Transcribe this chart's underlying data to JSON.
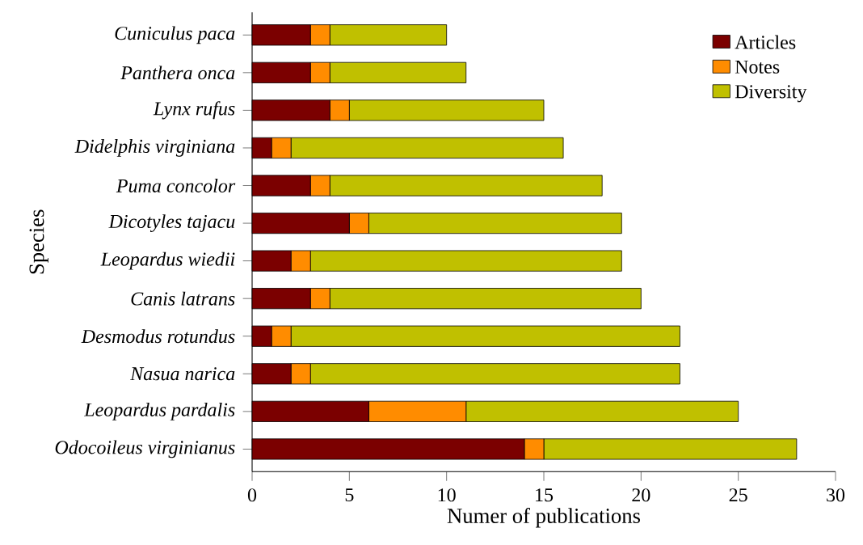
{
  "chart_data": {
    "type": "bar",
    "orientation": "horizontal",
    "stacked": true,
    "xlabel": "Numer of publications",
    "ylabel": "Species",
    "categories": [
      "Cuniculus paca",
      "Panthera onca",
      "Lynx rufus",
      "Didelphis virginiana",
      "Puma concolor",
      "Dicotyles tajacu",
      "Leopardus wiedii",
      "Canis latrans",
      "Desmodus rotundus",
      "Nasua narica",
      "Leopardus pardalis",
      "Odocoileus virginianus"
    ],
    "series": [
      {
        "name": "Articles",
        "color": "#7b0000",
        "values": [
          3,
          3,
          4,
          1,
          3,
          5,
          2,
          3,
          1,
          2,
          6,
          14
        ]
      },
      {
        "name": "Notes",
        "color": "#ff8c00",
        "values": [
          1,
          1,
          1,
          1,
          1,
          1,
          1,
          1,
          1,
          1,
          5,
          1
        ]
      },
      {
        "name": "Diversity",
        "color": "#c0c000",
        "values": [
          6,
          7,
          10,
          14,
          14,
          13,
          16,
          16,
          20,
          19,
          14,
          13
        ]
      }
    ],
    "xlim": [
      0,
      30
    ],
    "xticks": [
      0,
      5,
      10,
      15,
      20,
      25,
      30
    ],
    "legend": "top right",
    "grid": false
  }
}
